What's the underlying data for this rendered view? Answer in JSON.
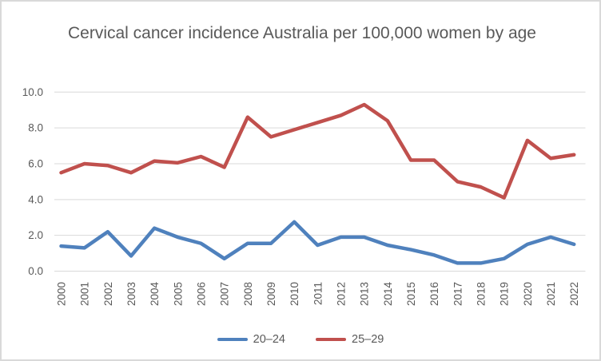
{
  "window": {
    "background": "#ffffff",
    "border_color": "#d9d9d9",
    "text_color": "#595959"
  },
  "chart_data": {
    "type": "line",
    "title": "Cervical cancer incidence Australia per 100,000 women by age",
    "x": [
      "2000",
      "2001",
      "2002",
      "2003",
      "2004",
      "2005",
      "2006",
      "2007",
      "2008",
      "2009",
      "2010",
      "2011",
      "2012",
      "2013",
      "2014",
      "2015",
      "2016",
      "2017",
      "2018",
      "2019",
      "2020",
      "2021",
      "2022"
    ],
    "series": [
      {
        "name": "20–24",
        "color": "#4F81BD",
        "values": [
          1.4,
          1.3,
          2.2,
          0.85,
          2.4,
          1.9,
          1.55,
          0.7,
          1.55,
          1.55,
          2.75,
          1.45,
          1.9,
          1.9,
          1.45,
          1.2,
          0.9,
          0.45,
          0.45,
          0.7,
          1.5,
          1.9,
          1.5
        ]
      },
      {
        "name": "25–29",
        "color": "#C0504D",
        "values": [
          5.5,
          6.0,
          5.9,
          5.5,
          6.15,
          6.05,
          6.4,
          5.8,
          8.6,
          7.5,
          7.9,
          8.3,
          8.7,
          9.3,
          8.4,
          6.2,
          6.2,
          5.0,
          4.7,
          4.1,
          7.3,
          6.3,
          6.5
        ]
      }
    ],
    "y_axis": {
      "ticks": [
        "0.0",
        "2.0",
        "4.0",
        "6.0",
        "8.0",
        "10.0"
      ],
      "min": 0,
      "max": 10
    },
    "x_axis": {
      "label_rotation_degrees": -90
    },
    "grid": true,
    "gridline_color": "#d9d9d9",
    "legend_position": "bottom"
  }
}
